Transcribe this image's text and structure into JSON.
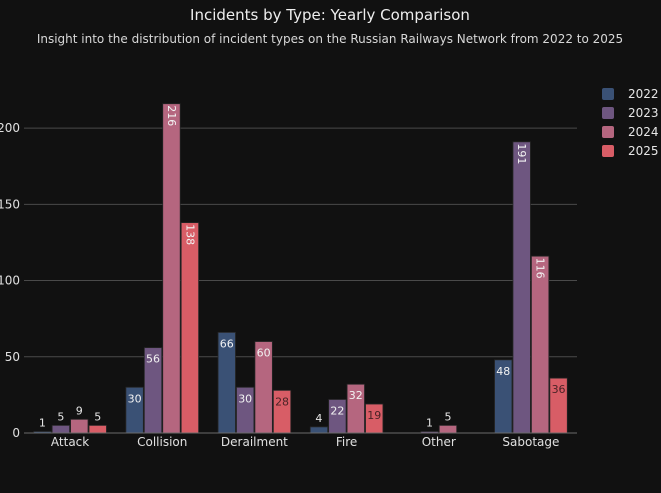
{
  "chart_data": {
    "type": "bar",
    "title": "Incidents by Type: Yearly Comparison",
    "subtitle": "Insight into the distribution of incident types on the Russian Railways Network from 2022 to 2025",
    "xlabel": "",
    "ylabel": "",
    "ylim": [
      0,
      225
    ],
    "y_ticks": [
      0,
      50,
      100,
      150,
      200
    ],
    "y_tick_labels": [
      "0",
      "50",
      "100",
      "150",
      "200"
    ],
    "categories": [
      "Attack",
      "Collision",
      "Derailment",
      "Fire",
      "Other",
      "Sabotage"
    ],
    "series": [
      {
        "name": "2022",
        "color": "#3a5175",
        "values": [
          1,
          30,
          66,
          4,
          0,
          48
        ]
      },
      {
        "name": "2023",
        "color": "#6e5680",
        "values": [
          5,
          56,
          30,
          22,
          1,
          191
        ]
      },
      {
        "name": "2024",
        "color": "#b5667f",
        "values": [
          9,
          216,
          60,
          32,
          5,
          116
        ]
      },
      {
        "name": "2025",
        "color": "#d85d66",
        "values": [
          5,
          138,
          28,
          19,
          0,
          36
        ]
      }
    ],
    "legend_position": "top-right",
    "grid": true
  }
}
